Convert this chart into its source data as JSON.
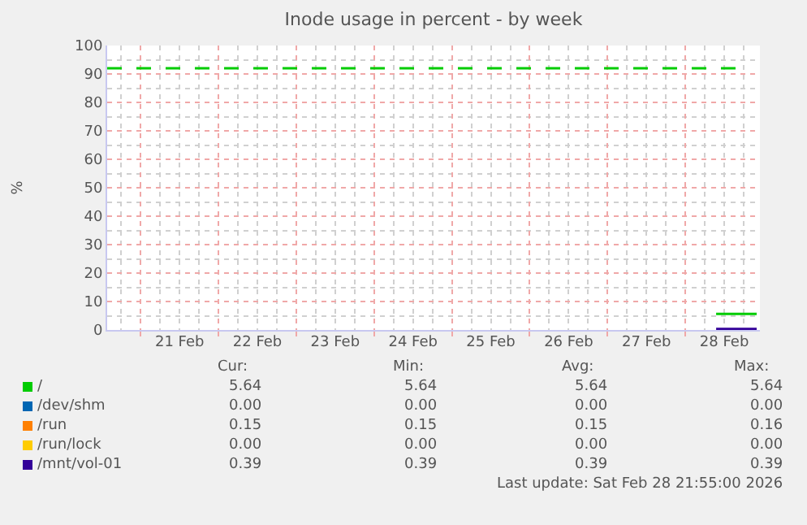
{
  "chart_data": {
    "type": "line",
    "title": "Inode usage in percent - by week",
    "ylabel": "%",
    "xlim": [
      "2026-02-20T13:40",
      "2026-02-28T23:00"
    ],
    "xticks": [
      {
        "value": "2026-02-21",
        "label": null
      },
      {
        "value": "2026-02-21T12:00",
        "label": "21 Feb"
      },
      {
        "value": "2026-02-22",
        "label": null
      },
      {
        "value": "2026-02-22T12:00",
        "label": "22 Feb"
      },
      {
        "value": "2026-02-23",
        "label": null
      },
      {
        "value": "2026-02-23T12:00",
        "label": "23 Feb"
      },
      {
        "value": "2026-02-24",
        "label": null
      },
      {
        "value": "2026-02-24T12:00",
        "label": "24 Feb"
      },
      {
        "value": "2026-02-25",
        "label": null
      },
      {
        "value": "2026-02-25T12:00",
        "label": "25 Feb"
      },
      {
        "value": "2026-02-26",
        "label": null
      },
      {
        "value": "2026-02-26T12:00",
        "label": "26 Feb"
      },
      {
        "value": "2026-02-27",
        "label": null
      },
      {
        "value": "2026-02-27T12:00",
        "label": "27 Feb"
      },
      {
        "value": "2026-02-28",
        "label": null
      },
      {
        "value": "2026-02-28T12:00",
        "label": "28 Feb"
      }
    ],
    "ylim": [
      0,
      100
    ],
    "yticks": [
      0,
      10,
      20,
      30,
      40,
      50,
      60,
      70,
      80,
      90,
      100
    ],
    "grid": true,
    "legend": "bottom",
    "line_style": "solid",
    "marker": "none",
    "series": [
      {
        "name": "/",
        "color": "#00cc00",
        "x": [
          "2026-02-28T09:30",
          "2026-02-28T22:00"
        ],
        "values": [
          5.64,
          5.64
        ]
      },
      {
        "name": "/dev/shm",
        "color": "#0066b3",
        "values": [
          null,
          null
        ]
      },
      {
        "name": "/run",
        "color": "#ff8000",
        "values": [
          null,
          null
        ]
      },
      {
        "name": "/run/lock",
        "color": "#ffcc00",
        "values": [
          null,
          null
        ]
      },
      {
        "name": "/mnt/vol-01",
        "color": "#330099",
        "x": [
          "2026-02-28T09:30",
          "2026-02-28T22:00"
        ],
        "values": [
          0.39,
          0.39
        ]
      }
    ],
    "ref_lines": [
      {
        "axis": "y",
        "value": 92,
        "label": null,
        "color": "#00cc00",
        "line_style": "dashed"
      }
    ],
    "annotations": [
      "Cur:",
      "Min:",
      "Avg:",
      "Max:",
      "5.64",
      "5.64",
      "5.64",
      "5.64",
      "0.00",
      "0.00",
      "0.00",
      "0.00",
      "0.15",
      "0.15",
      "0.15",
      "0.16",
      "0.00",
      "0.00",
      "0.00",
      "0.00",
      "0.39",
      "0.39",
      "0.39",
      "0.39",
      "Last update: Sat Feb 28 21:55:00 2026"
    ]
  }
}
